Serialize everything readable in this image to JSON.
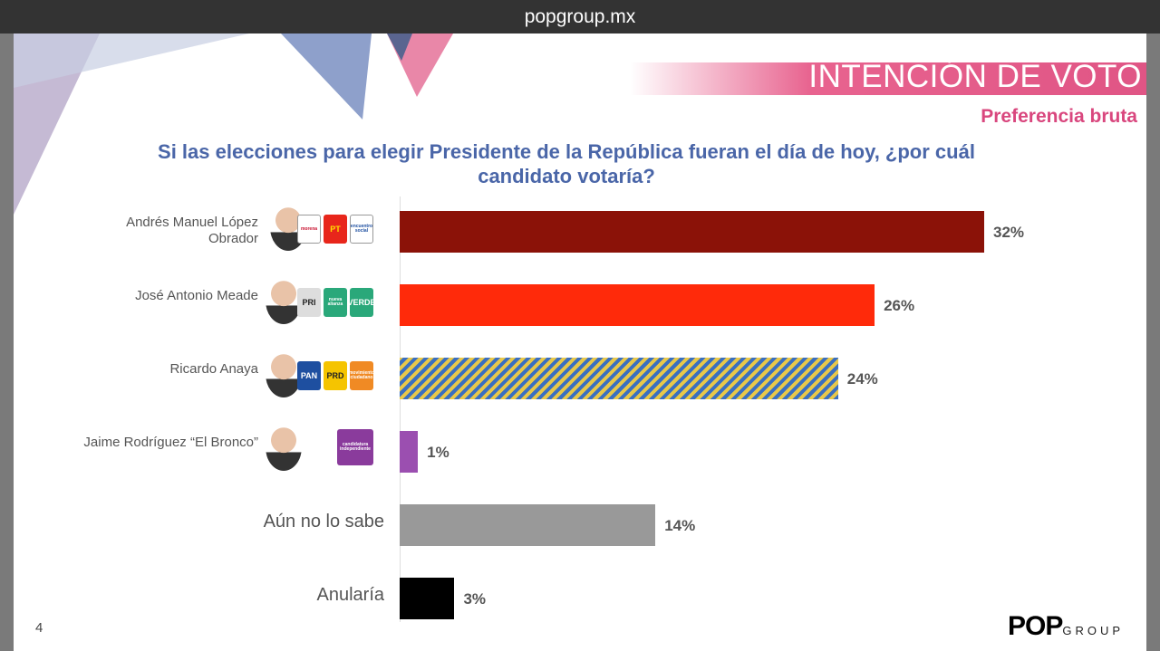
{
  "browser": {
    "url": "popgroup.mx"
  },
  "slide": {
    "title": "INTENCIÓN DE VOTO",
    "subtitle": "Preferencia bruta",
    "page_number": "4",
    "brand": "POP",
    "brand_suffix": "GROUP"
  },
  "chart_data": {
    "type": "bar",
    "orientation": "horizontal",
    "title": "Si las elecciones para elegir Presidente de la República fueran el día de hoy, ¿por cuál candidato votaría?",
    "categories": [
      "Andrés Manuel López Obrador",
      "José Antonio Meade",
      "Ricardo Anaya",
      "Jaime Rodríguez “El Bronco”",
      "Aún no lo sabe",
      "Anularía"
    ],
    "values": [
      32,
      26,
      24,
      1,
      14,
      3
    ],
    "value_labels": [
      "32%",
      "26%",
      "24%",
      "1%",
      "14%",
      "3%"
    ],
    "colors": [
      "#8b1208",
      "#ff2a0a",
      "striped-blue-yellow",
      "#9b4fb0",
      "#999999",
      "#000000"
    ],
    "party_logos": [
      [
        "morena",
        "PT",
        "encuentro social"
      ],
      [
        "PRI",
        "nueva alianza",
        "VERDE"
      ],
      [
        "PAN",
        "PRD",
        "movimiento ciudadano"
      ],
      [
        "candidatura independiente"
      ],
      [],
      []
    ],
    "xlim": [
      0,
      32
    ],
    "grid": false
  }
}
